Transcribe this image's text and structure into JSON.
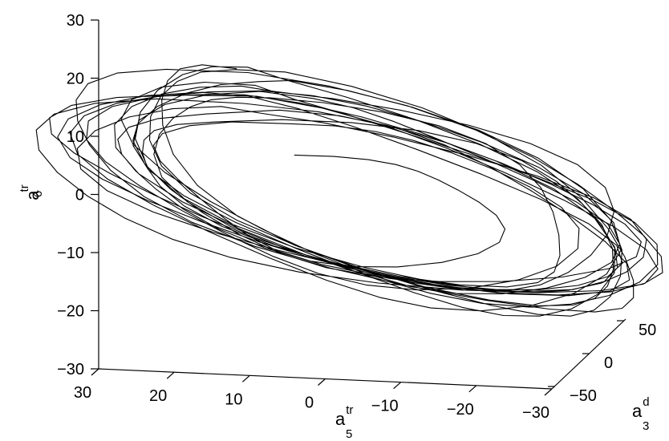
{
  "chart_data": {
    "type": "line",
    "projection": "3d",
    "series_count": 1,
    "axes": {
      "z": {
        "label_main": "a",
        "label_sup": "tr",
        "label_sub": "6",
        "range": [
          -30,
          30
        ],
        "ticks": [
          "30",
          "20",
          "10",
          "0",
          "−10",
          "−20",
          "−30"
        ],
        "tick_values": [
          30,
          20,
          10,
          0,
          -10,
          -20,
          -30
        ]
      },
      "x": {
        "label_main": "a",
        "label_sup": "tr",
        "label_sub": "5",
        "range": [
          30,
          -30
        ],
        "ticks": [
          "30",
          "20",
          "10",
          "0",
          "−10",
          "−20",
          "−30"
        ],
        "tick_values": [
          30,
          20,
          10,
          0,
          -10,
          -20,
          -30
        ]
      },
      "y": {
        "label_main": "a",
        "label_sup": "d",
        "label_sub": "3",
        "range": [
          -50,
          50
        ],
        "ticks": [
          "−50",
          "0",
          "50"
        ],
        "tick_values": [
          -50,
          0,
          50
        ]
      }
    },
    "grid": false,
    "legend": "none",
    "trajectory_description": "irregular quasi-periodic loops around the origin",
    "trajectory": {
      "loops": 18,
      "a5_amplitude_range": [
        6,
        26
      ],
      "a6_amplitude_range": [
        4,
        23
      ],
      "a3d_amplitude_range": [
        5,
        40
      ]
    },
    "colors": {
      "line": "#000000",
      "background": "#ffffff"
    }
  }
}
